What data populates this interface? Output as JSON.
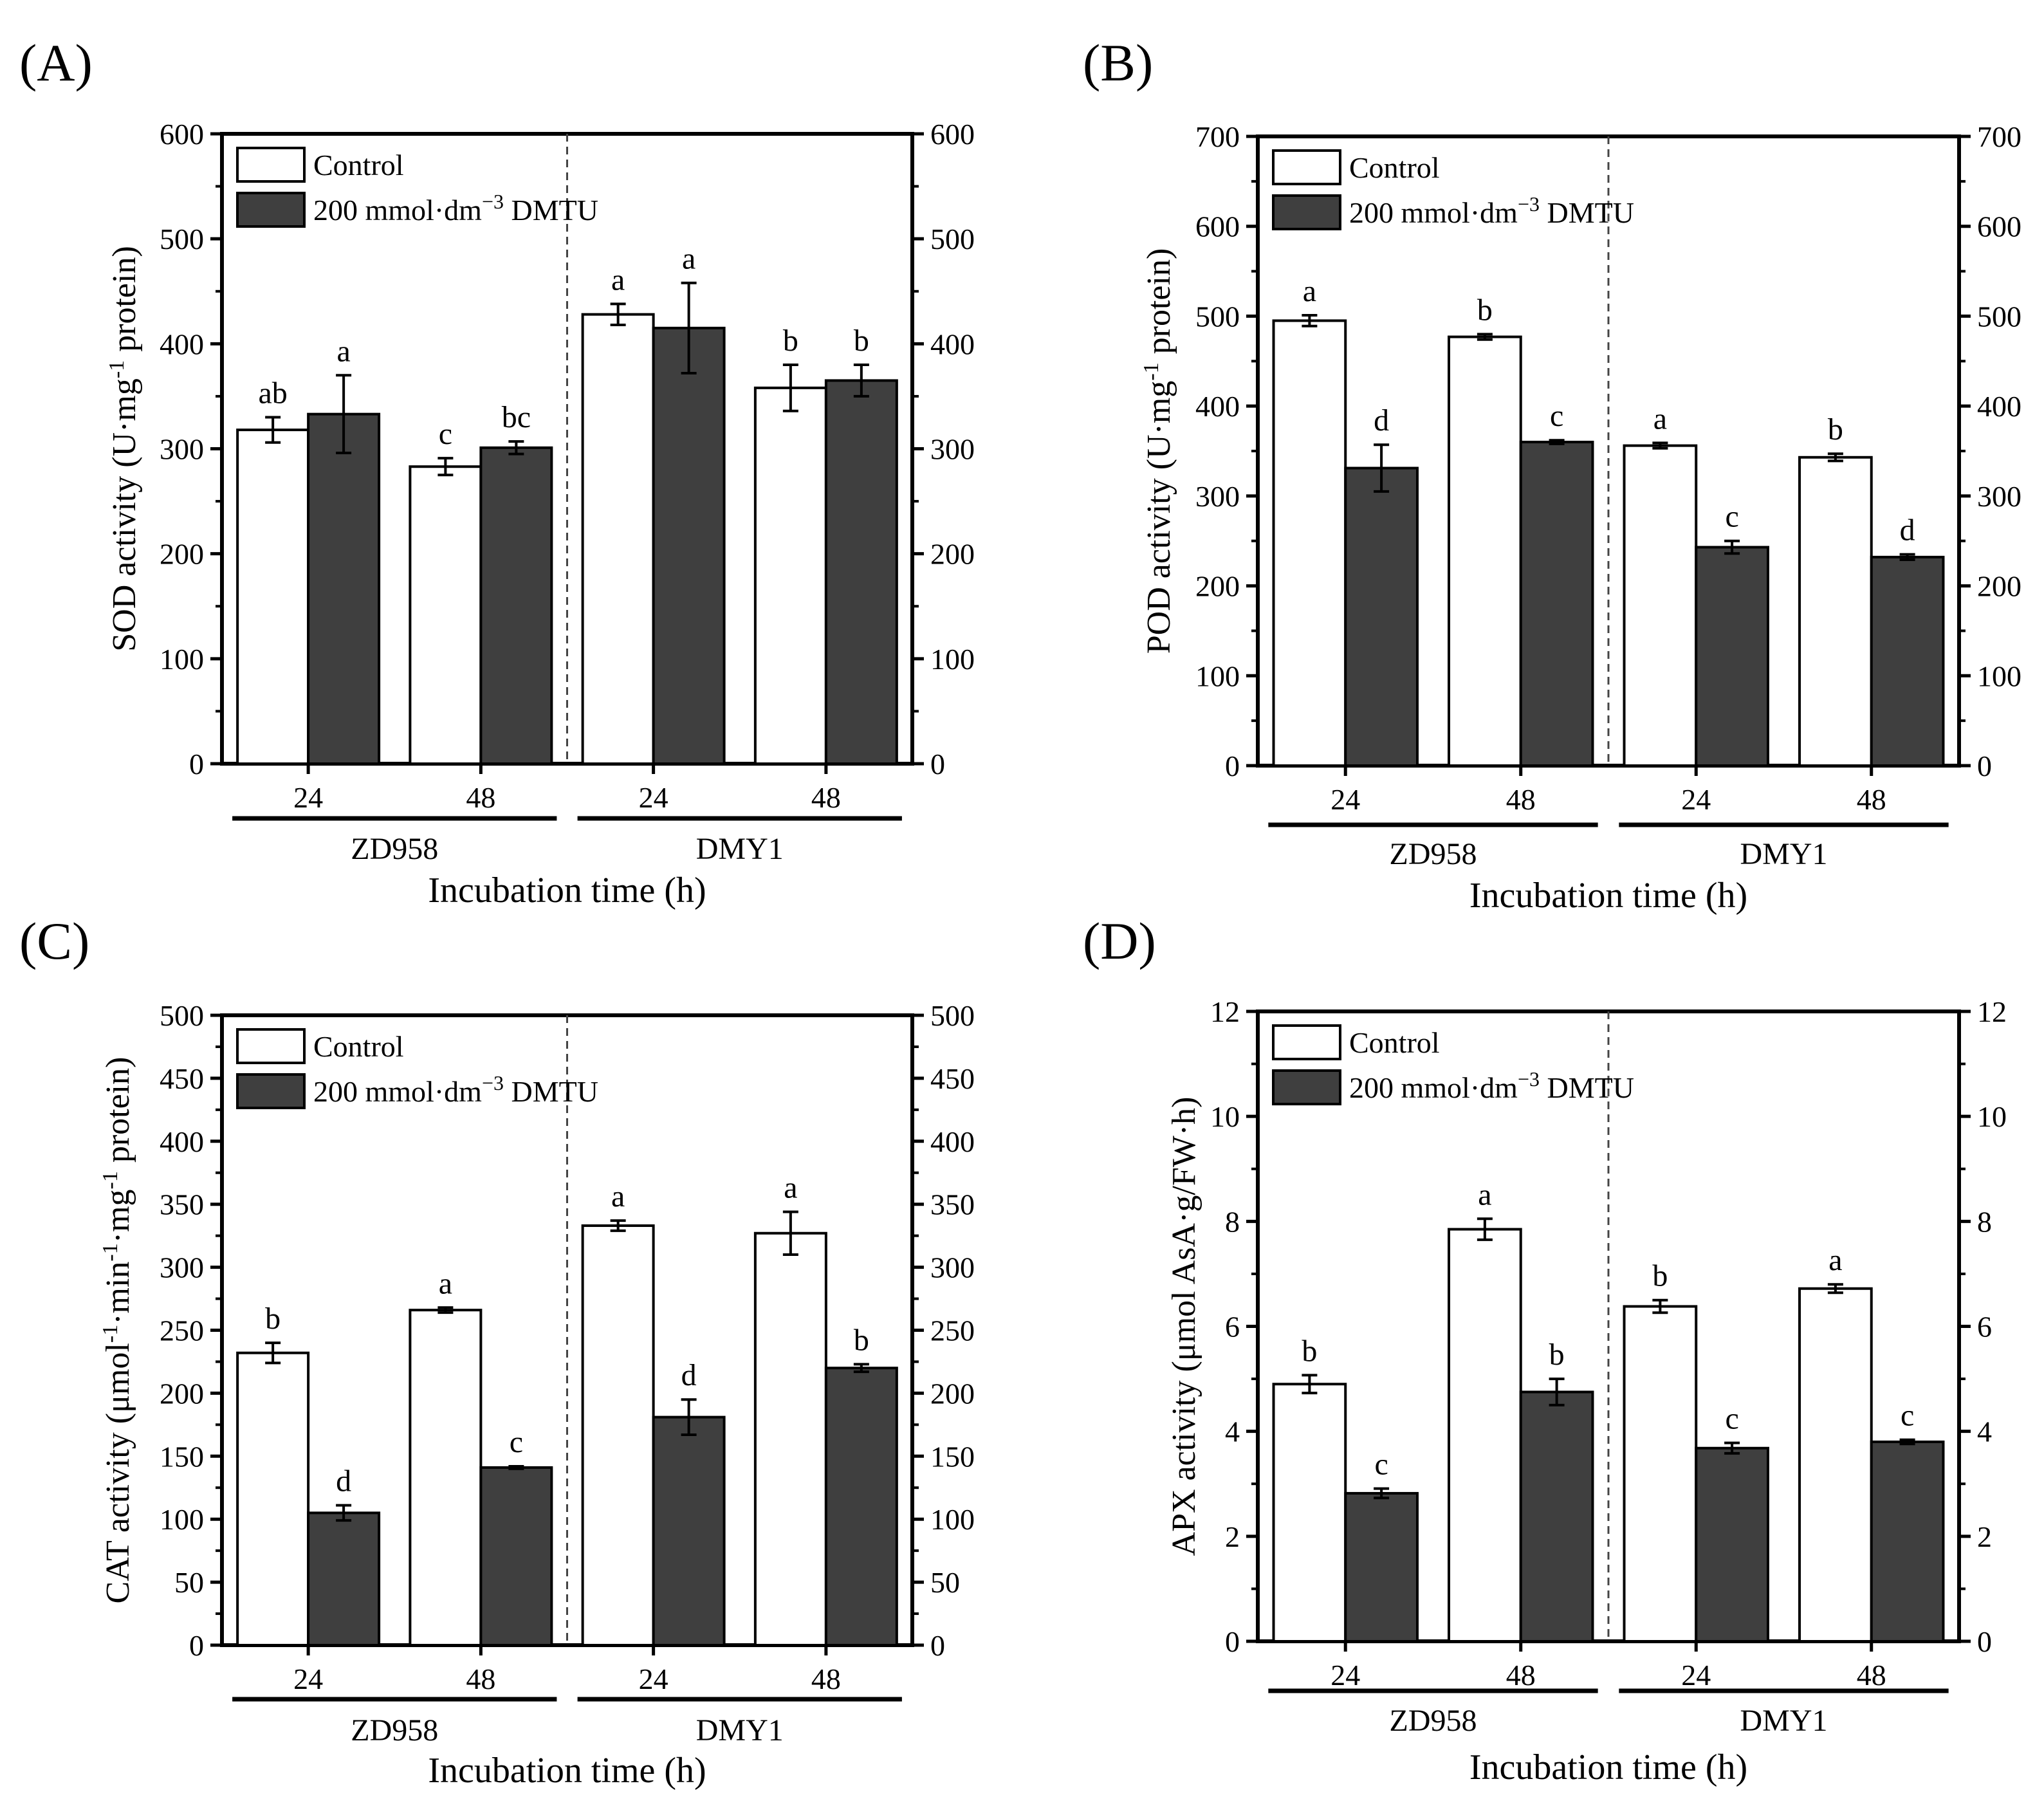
{
  "colors": {
    "control": "#ffffff",
    "dmtu": "#3f3f3f",
    "axis": "#000000"
  },
  "chart_data": [
    {
      "id": "A",
      "type": "bar",
      "panel_label": "(A)",
      "ylabel_main": "SOD activity (U·mg",
      "ylabel_sup": "-1",
      "ylabel_tail": " protein)",
      "xlabel": "Incubation time (h)",
      "ylim": [
        0,
        600
      ],
      "yticks": [
        0,
        100,
        200,
        300,
        400,
        500,
        600
      ],
      "categories": [
        "24",
        "48",
        "24",
        "48"
      ],
      "groups": [
        "ZD958",
        "DMY1"
      ],
      "legend": {
        "control": "Control",
        "dmtu": "200 mmol·dm",
        "dmtu_sup": "−3",
        "dmtu_tail": " DMTU"
      },
      "series": [
        {
          "name": "Control",
          "values": [
            318,
            283,
            428,
            358
          ],
          "errors": [
            12,
            8,
            10,
            22
          ],
          "letters": [
            "ab",
            "c",
            "a",
            "b"
          ]
        },
        {
          "name": "200 mmol·dm−3 DMTU",
          "values": [
            333,
            301,
            415,
            365
          ],
          "errors": [
            37,
            6,
            43,
            15
          ],
          "letters": [
            "a",
            "bc",
            "a",
            "b"
          ]
        }
      ]
    },
    {
      "id": "B",
      "type": "bar",
      "panel_label": "(B)",
      "ylabel_main": "POD activity (U·mg",
      "ylabel_sup": "-1",
      "ylabel_tail": " protein)",
      "xlabel": "Incubation time (h)",
      "ylim": [
        0,
        700
      ],
      "yticks": [
        0,
        100,
        200,
        300,
        400,
        500,
        600,
        700
      ],
      "categories": [
        "24",
        "48",
        "24",
        "48"
      ],
      "groups": [
        "ZD958",
        "DMY1"
      ],
      "legend": {
        "control": "Control",
        "dmtu": "200 mmol·dm",
        "dmtu_sup": "−3",
        "dmtu_tail": " DMTU"
      },
      "series": [
        {
          "name": "Control",
          "values": [
            495,
            477,
            356,
            343
          ],
          "errors": [
            6,
            3,
            3,
            4
          ],
          "letters": [
            "a",
            "b",
            "a",
            "b"
          ]
        },
        {
          "name": "200 mmol·dm−3 DMTU",
          "values": [
            331,
            360,
            243,
            232
          ],
          "errors": [
            26,
            2,
            7,
            3
          ],
          "letters": [
            "d",
            "c",
            "c",
            "d"
          ]
        }
      ]
    },
    {
      "id": "C",
      "type": "bar",
      "panel_label": "(C)",
      "ylabel_main": "CAT activity (μmol",
      "ylabel_mid": "·min",
      "ylabel_mid2": "·mg",
      "ylabel_sup": "-1",
      "ylabel_tail": " protein)",
      "xlabel": "Incubation time (h)",
      "ylim": [
        0,
        500
      ],
      "yticks": [
        0,
        50,
        100,
        150,
        200,
        250,
        300,
        350,
        400,
        450,
        500
      ],
      "categories": [
        "24",
        "48",
        "24",
        "48"
      ],
      "groups": [
        "ZD958",
        "DMY1"
      ],
      "legend": {
        "control": "Control",
        "dmtu": "200 mmol·dm",
        "dmtu_sup": "−3",
        "dmtu_tail": " DMTU"
      },
      "series": [
        {
          "name": "Control",
          "values": [
            232,
            266,
            333,
            327
          ],
          "errors": [
            8,
            2,
            4,
            17
          ],
          "letters": [
            "b",
            "a",
            "a",
            "a"
          ]
        },
        {
          "name": "200 mmol·dm−3 DMTU",
          "values": [
            105,
            141,
            181,
            220
          ],
          "errors": [
            6,
            1,
            14,
            3
          ],
          "letters": [
            "d",
            "c",
            "d",
            "b"
          ]
        }
      ]
    },
    {
      "id": "D",
      "type": "bar",
      "panel_label": "(D)",
      "ylabel_main": "APX activity (μmol AsA·g/FW·h)",
      "xlabel": "Incubation time (h)",
      "ylim": [
        0,
        12
      ],
      "yticks": [
        0,
        2,
        4,
        6,
        8,
        10,
        12
      ],
      "categories": [
        "24",
        "48",
        "24",
        "48"
      ],
      "groups": [
        "ZD958",
        "DMY1"
      ],
      "legend": {
        "control": "Control",
        "dmtu": "200 mmol·dm",
        "dmtu_sup": "−3",
        "dmtu_tail": " DMTU"
      },
      "series": [
        {
          "name": "Control",
          "values": [
            4.9,
            7.85,
            6.38,
            6.72
          ],
          "errors": [
            0.17,
            0.2,
            0.12,
            0.08
          ],
          "letters": [
            "b",
            "a",
            "b",
            "a"
          ]
        },
        {
          "name": "200 mmol·dm−3 DMTU",
          "values": [
            2.82,
            4.75,
            3.68,
            3.8
          ],
          "errors": [
            0.09,
            0.25,
            0.1,
            0.04
          ],
          "letters": [
            "c",
            "b",
            "c",
            "c"
          ]
        }
      ]
    }
  ]
}
